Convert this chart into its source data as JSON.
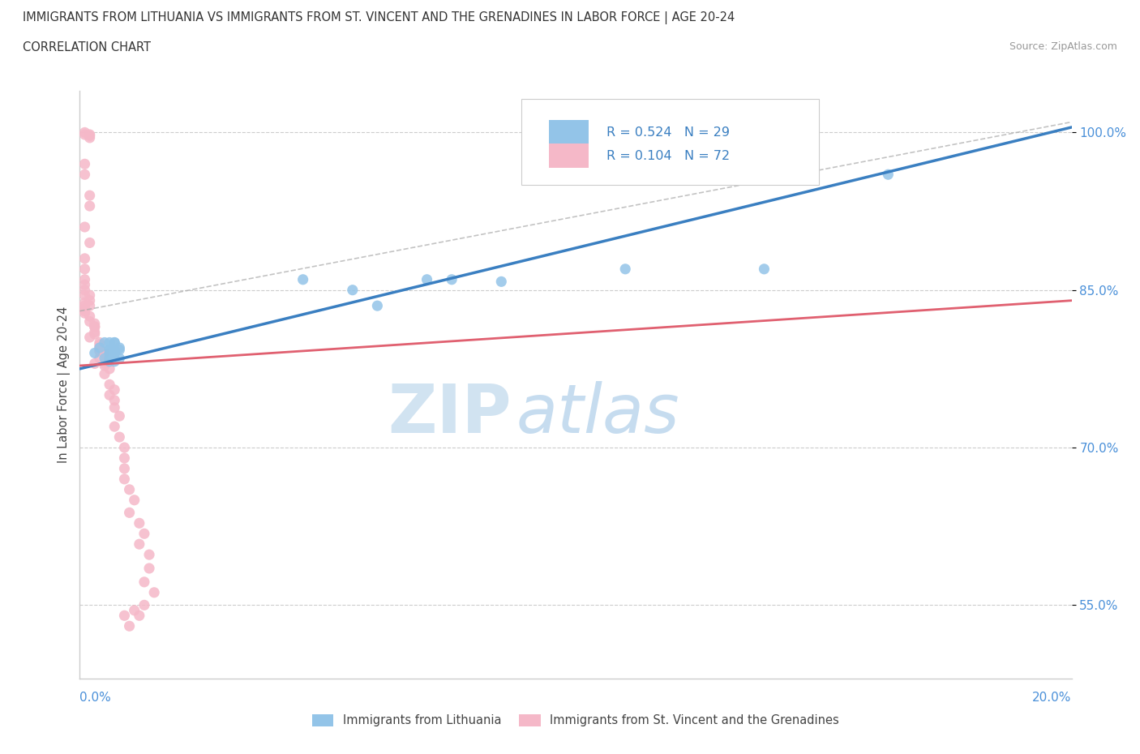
{
  "title_line1": "IMMIGRANTS FROM LITHUANIA VS IMMIGRANTS FROM ST. VINCENT AND THE GRENADINES IN LABOR FORCE | AGE 20-24",
  "title_line2": "CORRELATION CHART",
  "source_text": "Source: ZipAtlas.com",
  "ylabel": "In Labor Force | Age 20-24",
  "y_ticks": [
    0.55,
    0.7,
    0.85,
    1.0
  ],
  "y_tick_labels": [
    "55.0%",
    "70.0%",
    "85.0%",
    "100.0%"
  ],
  "xlim": [
    0.0,
    0.2
  ],
  "ylim": [
    0.48,
    1.04
  ],
  "R_blue": 0.524,
  "N_blue": 29,
  "R_pink": 0.104,
  "N_pink": 72,
  "blue_color": "#93c4e8",
  "pink_color": "#f5b8c8",
  "blue_line_color": "#3a7fc1",
  "pink_line_color": "#e06070",
  "blue_dot_edge": "none",
  "pink_dot_edge": "none",
  "watermark_zip_color": "#d0e8f5",
  "watermark_atlas_color": "#b8d8f0",
  "legend_label_blue": "Immigrants from Lithuania",
  "legend_label_pink": "Immigrants from St. Vincent and the Grenadines",
  "blue_scatter_x": [
    0.003,
    0.004,
    0.005,
    0.006,
    0.005,
    0.007,
    0.006,
    0.006,
    0.007,
    0.006,
    0.006,
    0.006,
    0.007,
    0.007,
    0.008,
    0.006,
    0.007,
    0.007,
    0.008,
    0.008,
    0.045,
    0.055,
    0.06,
    0.07,
    0.075,
    0.085,
    0.11,
    0.138,
    0.163
  ],
  "blue_scatter_y": [
    0.79,
    0.795,
    0.785,
    0.79,
    0.8,
    0.8,
    0.793,
    0.785,
    0.8,
    0.782,
    0.79,
    0.8,
    0.79,
    0.782,
    0.785,
    0.793,
    0.793,
    0.785,
    0.795,
    0.793,
    0.86,
    0.85,
    0.835,
    0.86,
    0.86,
    0.858,
    0.87,
    0.87,
    0.96
  ],
  "pink_scatter_x": [
    0.001,
    0.001,
    0.002,
    0.002,
    0.002,
    0.001,
    0.001,
    0.002,
    0.002,
    0.001,
    0.002,
    0.001,
    0.001,
    0.001,
    0.001,
    0.001,
    0.001,
    0.002,
    0.002,
    0.001,
    0.001,
    0.002,
    0.001,
    0.001,
    0.001,
    0.002,
    0.002,
    0.003,
    0.003,
    0.003,
    0.003,
    0.003,
    0.002,
    0.004,
    0.004,
    0.004,
    0.004,
    0.005,
    0.004,
    0.004,
    0.005,
    0.005,
    0.003,
    0.006,
    0.005,
    0.006,
    0.007,
    0.006,
    0.007,
    0.007,
    0.008,
    0.007,
    0.008,
    0.009,
    0.009,
    0.009,
    0.009,
    0.01,
    0.011,
    0.01,
    0.012,
    0.013,
    0.012,
    0.014,
    0.014,
    0.013,
    0.015,
    0.013,
    0.009,
    0.01,
    0.011,
    0.012
  ],
  "pink_scatter_y": [
    1.0,
    0.998,
    0.997,
    0.998,
    0.995,
    0.97,
    0.96,
    0.94,
    0.93,
    0.91,
    0.895,
    0.88,
    0.87,
    0.86,
    0.855,
    0.85,
    0.845,
    0.845,
    0.84,
    0.838,
    0.835,
    0.835,
    0.832,
    0.83,
    0.828,
    0.825,
    0.82,
    0.818,
    0.815,
    0.815,
    0.81,
    0.808,
    0.805,
    0.8,
    0.798,
    0.796,
    0.792,
    0.79,
    0.792,
    0.785,
    0.78,
    0.778,
    0.78,
    0.775,
    0.77,
    0.76,
    0.755,
    0.75,
    0.745,
    0.738,
    0.73,
    0.72,
    0.71,
    0.7,
    0.69,
    0.68,
    0.67,
    0.66,
    0.65,
    0.638,
    0.628,
    0.618,
    0.608,
    0.598,
    0.585,
    0.572,
    0.562,
    0.55,
    0.54,
    0.53,
    0.545,
    0.54
  ],
  "blue_trend_x0": 0.0,
  "blue_trend_y0": 0.775,
  "blue_trend_x1": 0.2,
  "blue_trend_y1": 1.005,
  "pink_trend_x0": 0.0,
  "pink_trend_y0": 0.778,
  "pink_trend_x1": 0.2,
  "pink_trend_y1": 0.84,
  "dash_trend_x0": 0.0,
  "dash_trend_y0": 0.83,
  "dash_trend_x1": 0.2,
  "dash_trend_y1": 1.01
}
